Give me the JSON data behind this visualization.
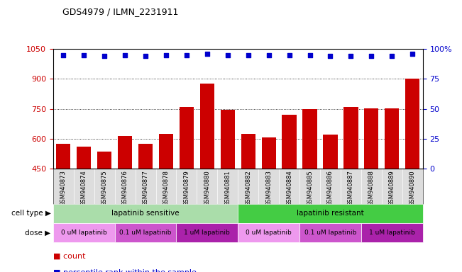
{
  "title": "GDS4979 / ILMN_2231911",
  "samples": [
    "GSM940873",
    "GSM940874",
    "GSM940875",
    "GSM940876",
    "GSM940877",
    "GSM940878",
    "GSM940879",
    "GSM940880",
    "GSM940881",
    "GSM940882",
    "GSM940883",
    "GSM940884",
    "GSM940885",
    "GSM940886",
    "GSM940887",
    "GSM940888",
    "GSM940889",
    "GSM940890"
  ],
  "bar_values": [
    575,
    560,
    535,
    615,
    575,
    625,
    760,
    875,
    745,
    625,
    605,
    720,
    748,
    622,
    760,
    752,
    752,
    900
  ],
  "dot_values": [
    95,
    95,
    94,
    95,
    94,
    95,
    95,
    96,
    95,
    95,
    95,
    95,
    95,
    94,
    94,
    94,
    94,
    96
  ],
  "bar_color": "#cc0000",
  "dot_color": "#0000cc",
  "ylim_left": [
    450,
    1050
  ],
  "ylim_right": [
    0,
    100
  ],
  "yticks_left": [
    450,
    600,
    750,
    900,
    1050
  ],
  "yticks_right": [
    0,
    25,
    50,
    75,
    100
  ],
  "grid_values": [
    600,
    750,
    900
  ],
  "cell_type_groups": [
    {
      "label": "lapatinib sensitive",
      "start": 0,
      "end": 9,
      "color": "#aaddaa"
    },
    {
      "label": "lapatinib resistant",
      "start": 9,
      "end": 18,
      "color": "#44cc44"
    }
  ],
  "dose_groups": [
    {
      "label": "0 uM lapatinib",
      "start": 0,
      "end": 3,
      "color": "#ee99ee"
    },
    {
      "label": "0.1 uM lapatinib",
      "start": 3,
      "end": 6,
      "color": "#cc55cc"
    },
    {
      "label": "1 uM lapatinib",
      "start": 6,
      "end": 9,
      "color": "#aa22aa"
    },
    {
      "label": "0 uM lapatinib",
      "start": 9,
      "end": 12,
      "color": "#ee99ee"
    },
    {
      "label": "0.1 uM lapatinib",
      "start": 12,
      "end": 15,
      "color": "#cc55cc"
    },
    {
      "label": "1 uM lapatinib",
      "start": 15,
      "end": 18,
      "color": "#aa22aa"
    }
  ]
}
